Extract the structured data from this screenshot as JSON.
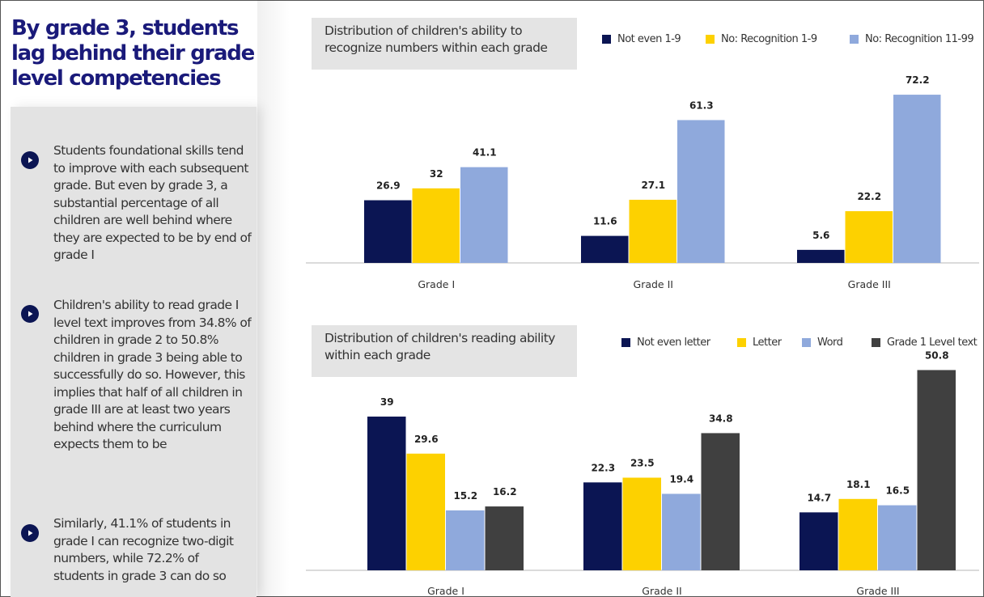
{
  "headline": "By grade 3, students lag behind their grade level competencies",
  "bullets": [
    {
      "icon": "play-circle-icon",
      "text": "Students foundational skills tend to improve with each subsequent grade.  But even by grade 3, a substantial percentage of all children are well behind where they are expected to be by end of grade I"
    },
    {
      "icon": "play-circle-icon",
      "text": " Children's ability to read grade I level text improves from 34.8% of children in grade 2 to 50.8% children in grade 3 being able to successfully do so. However, this implies that half of all children in grade III are at least two years behind where the curriculum expects them to be"
    },
    {
      "icon": "play-circle-icon",
      "text": "Similarly, 41.1% of students in grade I can recognize two-digit numbers, while 72.2% of students in grade 3 can do so"
    }
  ],
  "chart_data": [
    {
      "type": "bar",
      "title": "Distribution of children's ability to recognize numbers within each grade",
      "categories": [
        "Grade I",
        "Grade II",
        "Grade III"
      ],
      "series": [
        {
          "name": "Not even 1-9",
          "color": "#0b1553",
          "values": [
            26.9,
            11.6,
            5.6
          ]
        },
        {
          "name": "No: Recognition 1-9",
          "color": "#fdd100",
          "values": [
            32,
            27.1,
            22.2
          ]
        },
        {
          "name": "No: Recognition 11-99",
          "color": "#8fa9dc",
          "values": [
            41.1,
            61.3,
            72.2
          ]
        }
      ],
      "ylim": [
        0,
        75
      ],
      "grid": false,
      "legend": "top-right"
    },
    {
      "type": "bar",
      "title": "Distribution of children's reading ability within each grade",
      "categories": [
        "Grade I",
        "Grade II",
        "Grade III"
      ],
      "series": [
        {
          "name": "Not even letter",
          "color": "#0b1553",
          "values": [
            39,
            22.3,
            14.7
          ]
        },
        {
          "name": "Letter",
          "color": "#fdd100",
          "values": [
            29.6,
            23.5,
            18.1
          ]
        },
        {
          "name": "Word",
          "color": "#8fa9dc",
          "values": [
            15.2,
            19.4,
            16.5
          ]
        },
        {
          "name": "Grade 1 Level text",
          "color": "#404040",
          "values": [
            16.2,
            34.8,
            50.8
          ]
        }
      ],
      "ylim": [
        0,
        55
      ],
      "grid": false,
      "legend": "top-right"
    }
  ]
}
